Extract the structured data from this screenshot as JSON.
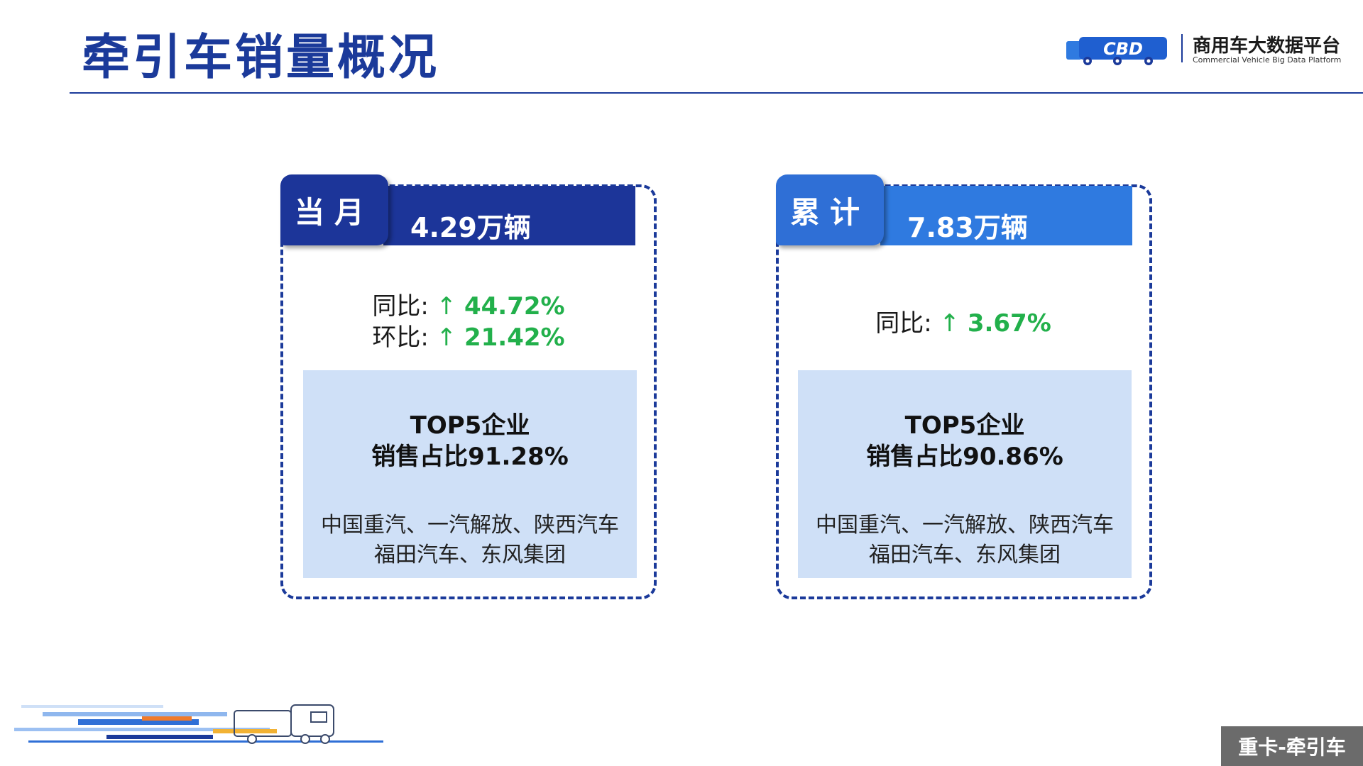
{
  "header": {
    "title": "牵引车销量概况",
    "logo_mark_text": "CBD",
    "logo_name": "商用车大数据平台",
    "logo_subtitle": "Commercial Vehicle Big Data Platform"
  },
  "cards": [
    {
      "tab_label": "当月",
      "volume": "4.29万辆",
      "stats": [
        {
          "label": "同比:",
          "arrow": "↑",
          "value": "44.72%"
        },
        {
          "label": "环比:",
          "arrow": "↑",
          "value": "21.42%"
        }
      ],
      "panel_title_line1": "TOP5企业",
      "panel_title_line2": "销售占比91.28%",
      "companies_line1": "中国重汽、一汽解放、陕西汽车",
      "companies_line2": "福田汽车、东风集团"
    },
    {
      "tab_label": "累计",
      "volume": "7.83万辆",
      "stats": [
        {
          "label": "同比:",
          "arrow": "↑",
          "value": "3.67%"
        }
      ],
      "panel_title_line1": "TOP5企业",
      "panel_title_line2": "销售占比90.86%",
      "companies_line1": "中国重汽、一汽解放、陕西汽车",
      "companies_line2": "福田汽车、东风集团"
    }
  ],
  "footer": {
    "badge": "重卡-牵引车"
  },
  "colors": {
    "primary": "#1b3a9a",
    "tab_current": "#1c3599",
    "tab_cumulative": "#2f6fd6",
    "increase": "#22b04b",
    "panel_bg": "#cfe0f7"
  }
}
